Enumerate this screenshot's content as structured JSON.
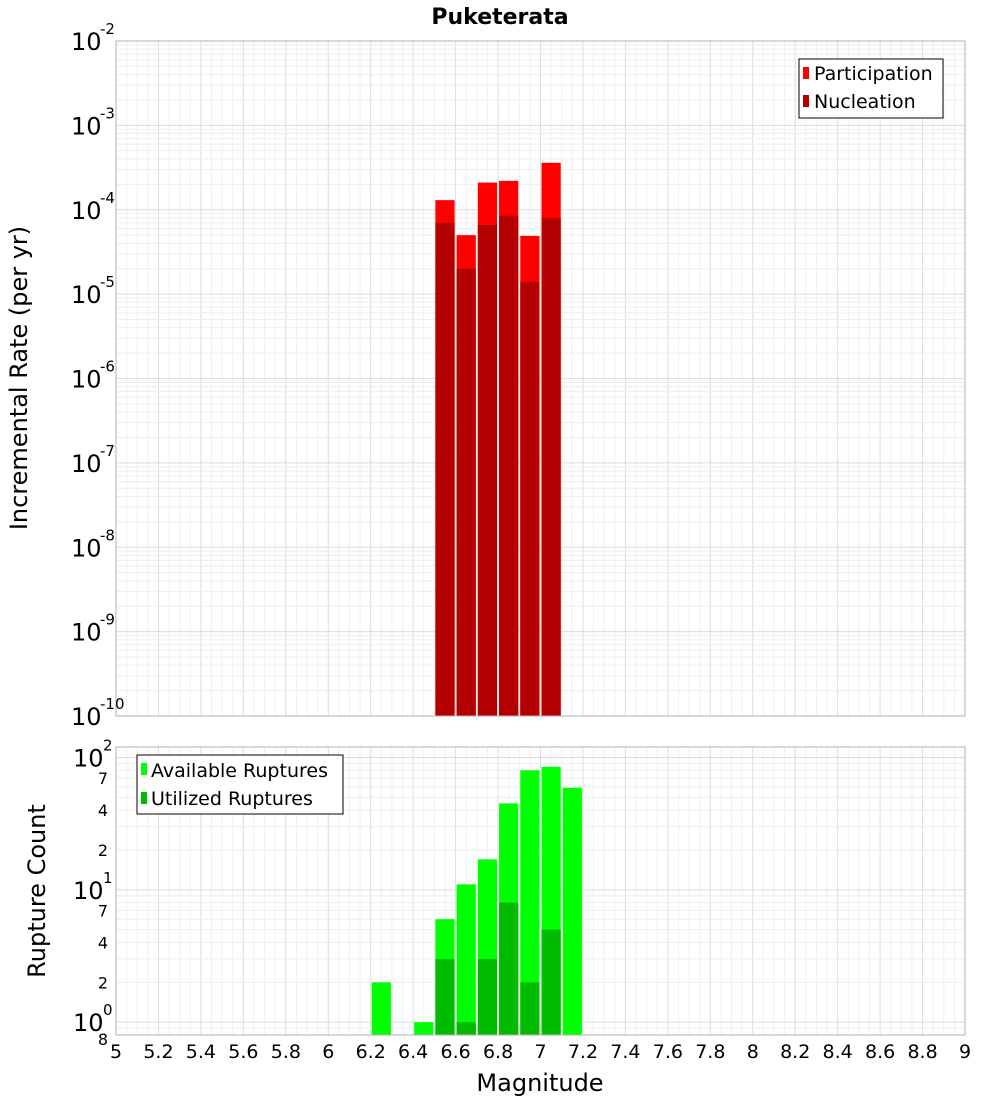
{
  "chart_data": {
    "title": "Puketerata",
    "xlabel": "Magnitude",
    "x_range": [
      5,
      9
    ],
    "x_ticks": [
      "5",
      "5.2",
      "5.4",
      "5.6",
      "5.8",
      "6",
      "6.2",
      "6.4",
      "6.6",
      "6.8",
      "7",
      "7.2",
      "7.4",
      "7.6",
      "7.8",
      "8",
      "8.2",
      "8.4",
      "8.6",
      "8.8",
      "9"
    ],
    "panels": [
      {
        "type": "bar",
        "ylabel": "Incremental Rate (per yr)",
        "y_scale": "log",
        "ylim": [
          1e-10,
          0.01
        ],
        "y_ticks": [
          {
            "base": "10",
            "exp": "-2"
          },
          {
            "base": "10",
            "exp": "-3"
          },
          {
            "base": "10",
            "exp": "-4"
          },
          {
            "base": "10",
            "exp": "-5"
          },
          {
            "base": "10",
            "exp": "-6"
          },
          {
            "base": "10",
            "exp": "-7"
          },
          {
            "base": "10",
            "exp": "-8"
          },
          {
            "base": "10",
            "exp": "-9"
          },
          {
            "base": "10",
            "exp": "-10"
          }
        ],
        "legend_position": "top-right",
        "grid": true,
        "bin_width": 0.1,
        "x": [
          6.55,
          6.65,
          6.75,
          6.85,
          6.95,
          7.05
        ],
        "series": [
          {
            "name": "Participation",
            "color": "#ff0000",
            "values": [
              0.00013,
              5e-05,
              0.00021,
              0.00022,
              4.9e-05,
              0.00036
            ]
          },
          {
            "name": "Nucleation",
            "color": "#b40000",
            "values": [
              7e-05,
              2e-05,
              6.6e-05,
              8.5e-05,
              1.4e-05,
              8e-05
            ]
          }
        ]
      },
      {
        "type": "bar",
        "ylabel": "Rupture Count",
        "y_scale": "log",
        "ylim": [
          0.8,
          120
        ],
        "y_ticks": [
          {
            "base": "10",
            "exp": "2"
          },
          {
            "base": "10",
            "exp": "1"
          },
          {
            "base": "10",
            "exp": "0"
          }
        ],
        "y_minor_labels": [
          "7",
          "4",
          "2",
          "7",
          "4",
          "2",
          "8"
        ],
        "legend_position": "top-left",
        "grid": true,
        "bin_width": 0.1,
        "x": [
          6.25,
          6.45,
          6.55,
          6.65,
          6.75,
          6.85,
          6.95,
          7.05,
          7.15
        ],
        "series": [
          {
            "name": "Available Ruptures",
            "color": "#00ff00",
            "values": [
              2,
              1,
              6,
              11,
              17,
              45,
              80,
              85,
              59
            ]
          },
          {
            "name": "Utilized Ruptures",
            "color": "#00bb00",
            "values": [
              0,
              0,
              3,
              1,
              3,
              8,
              2,
              5,
              0
            ]
          }
        ]
      }
    ]
  }
}
